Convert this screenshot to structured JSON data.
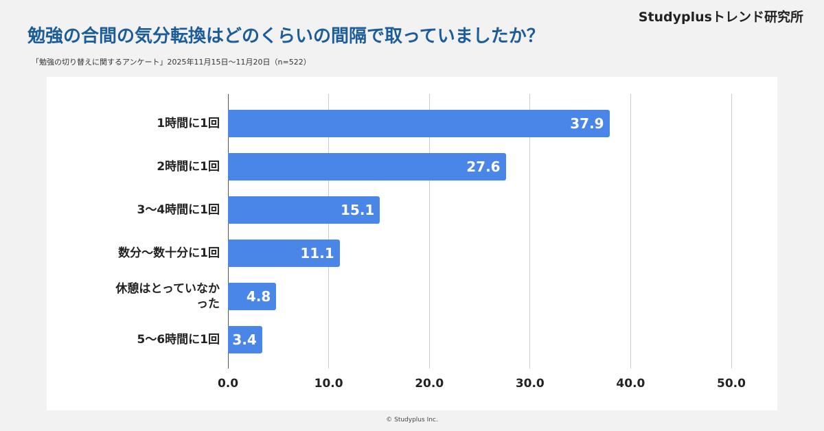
{
  "brand": "Studyplusトレンド研究所",
  "footer": "© Studyplus Inc.",
  "chart_data": {
    "type": "bar",
    "orientation": "horizontal",
    "title": "勉強の合間の気分転換はどのくらいの間隔で取っていましたか？",
    "subtitle": "「勉強の切り替えに関するアンケート」2025年11月15日〜11月20日（n=522）",
    "categories": [
      "1時間に1回",
      "2時間に1回",
      "3〜4時間に1回",
      "数分〜数十分に1回",
      "休憩はとっていなかった",
      "5〜6時間に1回"
    ],
    "values": [
      37.9,
      27.6,
      15.1,
      11.1,
      4.8,
      3.4
    ],
    "color": "#4a86e8",
    "xlim": [
      0,
      50
    ],
    "xticks": [
      {
        "value": 0,
        "label": "0.0"
      },
      {
        "value": 10,
        "label": "10.0"
      },
      {
        "value": 20,
        "label": "20.0"
      },
      {
        "value": 30,
        "label": "30.0"
      },
      {
        "value": 40,
        "label": "40.0"
      },
      {
        "value": 50,
        "label": "50.0"
      }
    ],
    "grid": true
  }
}
